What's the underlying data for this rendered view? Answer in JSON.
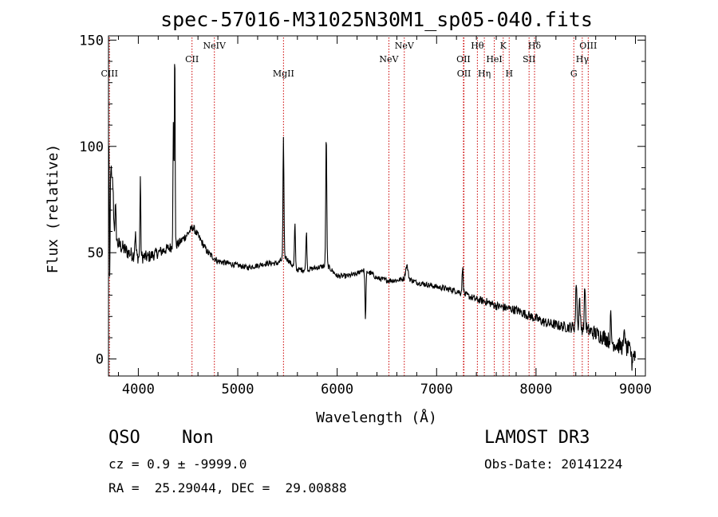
{
  "chart_data": {
    "type": "line",
    "title": "spec-57016-M31025N30M1_sp05-040.fits",
    "xlabel": "Wavelength (Å)",
    "ylabel": "Flux (relative)",
    "xlim": [
      3700,
      9100
    ],
    "ylim": [
      -8,
      152
    ],
    "xticks": [
      4000,
      5000,
      6000,
      7000,
      8000,
      9000
    ],
    "yticks": [
      0,
      50,
      100,
      150
    ],
    "grid": false,
    "line_color": "#000000",
    "marker_color": "#cc0000",
    "continuum": {
      "x": [
        3700,
        3750,
        3800,
        3900,
        4000,
        4100,
        4200,
        4300,
        4400,
        4480,
        4550,
        4600,
        4700,
        4800,
        4900,
        5000,
        5100,
        5200,
        5300,
        5400,
        5480,
        5550,
        5600,
        5700,
        5800,
        5900,
        6000,
        6100,
        6200,
        6250,
        6350,
        6400,
        6500,
        6600,
        6700,
        6800,
        6900,
        7000,
        7100,
        7200,
        7300,
        7400,
        7500,
        7600,
        7700,
        7800,
        7900,
        8000,
        8100,
        8200,
        8300,
        8400,
        8500,
        8600,
        8700,
        8750,
        8800,
        8850,
        8900,
        8950,
        9000
      ],
      "y": [
        55,
        57,
        54,
        50,
        48,
        48,
        50,
        52,
        54,
        58,
        62,
        58,
        50,
        46,
        45,
        44,
        43,
        44,
        45,
        45,
        48,
        44,
        42,
        42,
        43,
        44,
        39,
        39,
        40,
        42,
        40,
        38,
        37,
        37,
        38,
        36,
        35,
        34,
        33,
        32,
        30,
        28,
        27,
        25,
        24,
        23,
        21,
        19,
        17,
        16,
        15,
        15,
        14,
        12,
        10,
        8,
        7,
        6,
        5,
        4,
        2
      ]
    },
    "features": [
      {
        "name": "blue-edge spike",
        "center": 3705,
        "amplitude": 52,
        "width": 4
      },
      {
        "name": "blue-edge dip",
        "center": 3712,
        "amplitude": -48,
        "width": 4
      },
      {
        "name": "peak 3720",
        "center": 3722,
        "amplitude": 35,
        "width": 8
      },
      {
        "name": "peak 3740",
        "center": 3742,
        "amplitude": 25,
        "width": 8
      },
      {
        "name": "peak 3770",
        "center": 3770,
        "amplitude": 15,
        "width": 6
      },
      {
        "name": "peak 3970",
        "center": 3970,
        "amplitude": 10,
        "width": 6
      },
      {
        "name": "spike 4020",
        "center": 4020,
        "amplitude": 38,
        "width": 4
      },
      {
        "name": "spike 4350",
        "center": 4352,
        "amplitude": 60,
        "width": 4
      },
      {
        "name": "spike 4365",
        "center": 4366,
        "amplitude": 95,
        "width": 4
      },
      {
        "name": "Mg II emission",
        "center": 5460,
        "amplitude": 56,
        "width": 5
      },
      {
        "name": "spike 5575",
        "center": 5575,
        "amplitude": 20,
        "width": 5
      },
      {
        "name": "spike 5690",
        "center": 5690,
        "amplitude": 18,
        "width": 5
      },
      {
        "name": "spike 5890",
        "center": 5890,
        "amplitude": 62,
        "width": 5
      },
      {
        "name": "absorption 6280",
        "center": 6285,
        "amplitude": -22,
        "width": 5
      },
      {
        "name": "bump 6700",
        "center": 6700,
        "amplitude": 6,
        "width": 12
      },
      {
        "name": "emission 7260",
        "center": 7262,
        "amplitude": 12,
        "width": 6
      },
      {
        "name": "emission 8400",
        "center": 8405,
        "amplitude": 22,
        "width": 6
      },
      {
        "name": "emission 8440",
        "center": 8438,
        "amplitude": 14,
        "width": 6
      },
      {
        "name": "emission 8490",
        "center": 8492,
        "amplitude": 20,
        "width": 6
      },
      {
        "name": "spike 8750",
        "center": 8752,
        "amplitude": 12,
        "width": 5
      },
      {
        "name": "spike 8890",
        "center": 8890,
        "amplitude": 10,
        "width": 5
      },
      {
        "name": "dip 8960",
        "center": 8965,
        "amplitude": -6,
        "width": 5
      }
    ],
    "noise_amplitude": [
      [
        3700,
        8
      ],
      [
        4500,
        4
      ],
      [
        5000,
        2.5
      ],
      [
        6000,
        2.5
      ],
      [
        7000,
        2.5
      ],
      [
        7600,
        4
      ],
      [
        8300,
        5
      ],
      [
        8700,
        8
      ],
      [
        9000,
        8
      ]
    ],
    "lines": [
      {
        "label": "CIII",
        "wavelength": 3710,
        "row": 3
      },
      {
        "label": "CII",
        "wavelength": 4540,
        "row": 2
      },
      {
        "label": "NeIV",
        "wavelength": 4765,
        "row": 1
      },
      {
        "label": "MgII",
        "wavelength": 5460,
        "row": 3
      },
      {
        "label": "NeV",
        "wavelength": 6520,
        "row": 2
      },
      {
        "label": "NeV",
        "wavelength": 6675,
        "row": 1
      },
      {
        "label": "OII",
        "wavelength": 7270,
        "row": 2
      },
      {
        "label": "OII",
        "wavelength": 7275,
        "row": 3
      },
      {
        "label": "Hθ",
        "wavelength": 7410,
        "row": 1
      },
      {
        "label": "Hη",
        "wavelength": 7480,
        "row": 3
      },
      {
        "label": "HeI",
        "wavelength": 7580,
        "row": 2
      },
      {
        "label": "K",
        "wavelength": 7670,
        "row": 1
      },
      {
        "label": "H",
        "wavelength": 7730,
        "row": 3
      },
      {
        "label": "SII",
        "wavelength": 7930,
        "row": 2
      },
      {
        "label": "Hδ",
        "wavelength": 7985,
        "row": 1
      },
      {
        "label": "G",
        "wavelength": 8380,
        "row": 3
      },
      {
        "label": "Hγ",
        "wavelength": 8465,
        "row": 2
      },
      {
        "label": "OIII",
        "wavelength": 8525,
        "row": 1
      }
    ]
  },
  "info": {
    "class": "QSO",
    "subclass": "Non",
    "cz": "cz = 0.9 ± -9999.0",
    "coords": "RA =  25.29044, DEC =  29.00888",
    "survey": "LAMOST DR3",
    "obs_date": "Obs-Date: 20141224"
  }
}
